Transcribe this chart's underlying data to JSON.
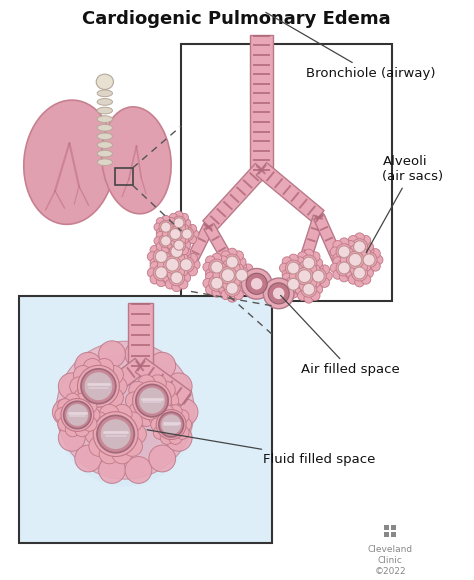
{
  "title": "Cardiogenic Pulmonary Edema",
  "title_fontsize": 13,
  "title_fontweight": "bold",
  "bg_color": "#ffffff",
  "labels": {
    "bronchiole": "Bronchiole (airway)",
    "alveoli": "Alveoli\n(air sacs)",
    "air_filled": "Air filled space",
    "fluid_filled": "Fluid filled space",
    "cleveland": "Cleveland\nClinic\n©2022"
  },
  "colors": {
    "lung_outer": "#d98899",
    "lung_inner": "#e8a8b5",
    "lung_vessel": "#c07080",
    "trachea_fill": "#ddd5c8",
    "trachea_ring": "#b8a898",
    "bronchiole_main": "#e8a0b0",
    "bronchiole_stripe": "#b86878",
    "bronchiole_edge": "#c07888",
    "alveoli_outer": "#e8a8b5",
    "alveoli_edge": "#c07080",
    "alveoli_inner_air": "#f0d8dc",
    "alveoli_inner_fluid": "#c8b8c0",
    "box_border": "#333333",
    "dash_color": "#555555",
    "label_color": "#111111",
    "fluid_bg": "#d0e8f5",
    "fluid_glow": "#b8d8f0",
    "arrow_color": "#444444"
  }
}
